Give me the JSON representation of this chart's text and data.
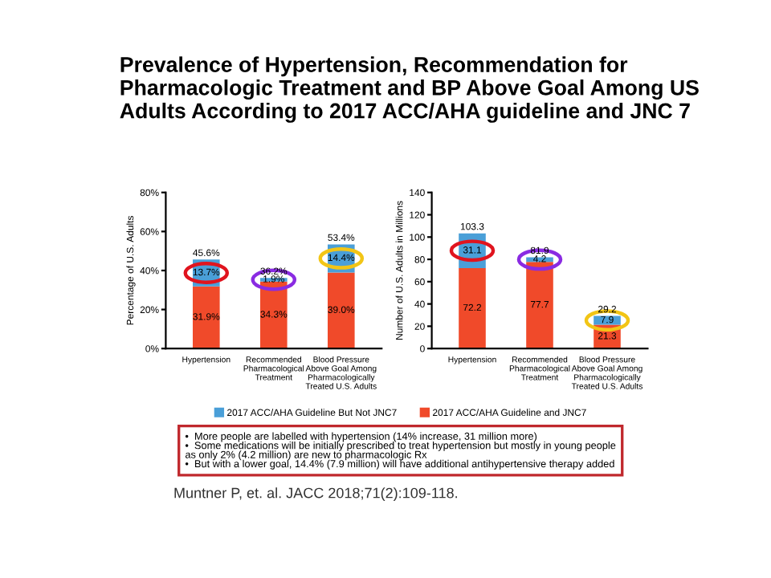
{
  "chart_data": [
    {
      "type": "bar",
      "stacked": true,
      "legend": "bottom",
      "title": "Prevalence of Hypertension, Recommendation for\nPharmacologic Treatment and BP Above Goal Among US\nAdults According to 2017 ACC/AHA guideline and JNC 7",
      "ylabel": "Percentage of U.S. Adults",
      "categories": [
        "Hypertension",
        "Recommended\nPharmacological\nTreatment",
        "Blood Pressure\nAbove Goal Among\nPharmacologically\nTreated U.S. Adults"
      ],
      "series": [
        {
          "name": "2017 ACC/AHA Guideline and JNC7",
          "color": "#f04a2a",
          "values": [
            31.9,
            34.3,
            39.0
          ],
          "value_labels": [
            "31.9%",
            "34.3%",
            "39.0%"
          ]
        },
        {
          "name": "2017 ACC/AHA Guideline But Not JNC7",
          "color": "#4a9fd8",
          "values": [
            13.7,
            1.9,
            14.4
          ],
          "value_labels": [
            "13.7%",
            "1.9%",
            "14.4%"
          ]
        }
      ],
      "totals": [
        "45.6%",
        "36.2%",
        "53.4%"
      ],
      "ylim": [
        0,
        80
      ],
      "yticks": [
        {
          "value": 0,
          "label": "0%"
        },
        {
          "value": 20,
          "label": "20%"
        },
        {
          "value": 40,
          "label": "40%"
        },
        {
          "value": 60,
          "label": "60%"
        },
        {
          "value": 80,
          "label": "80%"
        }
      ],
      "annotations": [
        "•  More people are labelled with hypertension (14% increase, 31 million more)",
        "•  Some medications will be initially prescribed to treat hypertension but mostly in young people\nas only 2% (4.2 million) are new to pharmacologic Rx",
        "•  But with a lower goal, 14.4% (7.9 million) will have additional antihypertensive therapy added",
        "Muntner P, et. al. JACC 2018;71(2):109-118."
      ]
    },
    {
      "type": "bar",
      "stacked": true,
      "ylabel": "Number of U.S. Adults in Millions",
      "categories": [
        "Hypertension",
        "Recommended\nPharmacological\nTreatment",
        "Blood Pressure\nAbove Goal Among\nPharmacologically\nTreated U.S. Adults"
      ],
      "series": [
        {
          "color": "#f04a2a",
          "values": [
            72.2,
            77.7,
            21.3
          ],
          "value_labels": [
            "72.2",
            "77.7",
            "21.3"
          ]
        },
        {
          "color": "#4a9fd8",
          "values": [
            31.1,
            4.2,
            7.9
          ],
          "value_labels": [
            "31.1",
            "4.2",
            "7.9"
          ]
        }
      ],
      "totals": [
        "103.3",
        "81.9",
        "29.2"
      ],
      "ylim": [
        0,
        140
      ],
      "yticks": [
        0,
        20,
        40,
        60,
        80,
        100,
        120,
        140
      ]
    }
  ]
}
